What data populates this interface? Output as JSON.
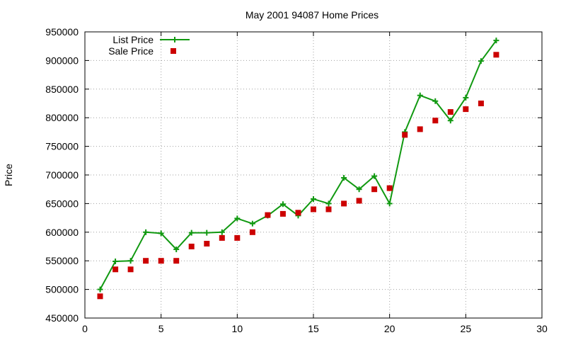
{
  "chart_data": {
    "type": "scatter",
    "title": "May 2001 94087 Home Prices",
    "xlabel": "",
    "ylabel": "Price",
    "xlim": [
      0,
      30
    ],
    "ylim": [
      450000,
      950000
    ],
    "xticks": [
      0,
      5,
      10,
      15,
      20,
      25,
      30
    ],
    "yticks": [
      450000,
      500000,
      550000,
      600000,
      650000,
      700000,
      750000,
      800000,
      850000,
      900000,
      950000
    ],
    "grid": true,
    "legend_position": "top-left",
    "series": [
      {
        "name": "List Price",
        "style": "line-with-plus-markers",
        "color": "#119911",
        "x": [
          1,
          2,
          3,
          4,
          5,
          6,
          7,
          8,
          9,
          10,
          11,
          12,
          13,
          14,
          15,
          16,
          17,
          18,
          19,
          20,
          21,
          22,
          23,
          24,
          25,
          26,
          27
        ],
        "values": [
          500000,
          549000,
          550000,
          600000,
          598000,
          570000,
          599000,
          599000,
          600000,
          624000,
          615000,
          629000,
          649000,
          629000,
          658000,
          650000,
          695000,
          675000,
          698000,
          650000,
          775000,
          839000,
          829000,
          795000,
          835000,
          899000,
          935000
        ]
      },
      {
        "name": "Sale Price",
        "style": "square-markers",
        "color": "#cc0000",
        "x": [
          1,
          2,
          3,
          4,
          5,
          6,
          7,
          8,
          9,
          10,
          11,
          12,
          13,
          14,
          15,
          16,
          17,
          18,
          19,
          20,
          21,
          22,
          23,
          24,
          25,
          26,
          27
        ],
        "values": [
          488000,
          535000,
          535000,
          550000,
          550000,
          550000,
          575000,
          580000,
          590000,
          590000,
          600000,
          630000,
          632000,
          634000,
          640000,
          640000,
          650000,
          655000,
          675000,
          677000,
          770000,
          780000,
          795000,
          810000,
          815000,
          825000,
          910000
        ]
      }
    ]
  }
}
